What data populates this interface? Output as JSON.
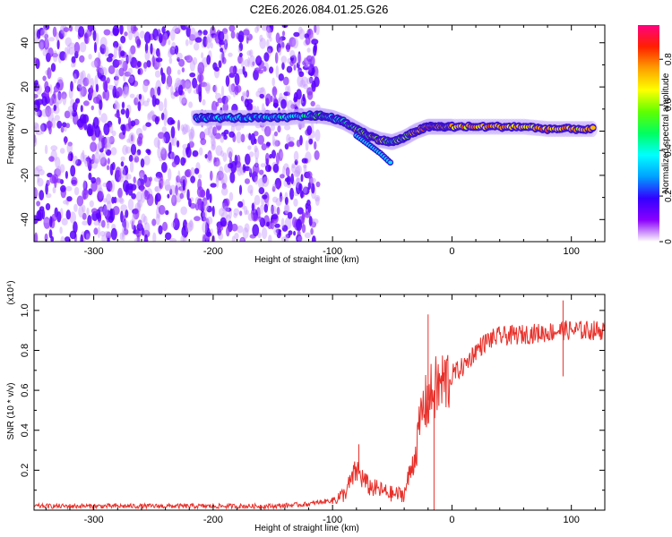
{
  "title": "C2E6.2026.084.01.25.G26",
  "chart_data": [
    {
      "type": "heatmap",
      "xlabel": "Height of straight line (km)",
      "ylabel": "Frequency (Hz)",
      "xlim": [
        -350,
        128
      ],
      "ylim": [
        -50,
        48
      ],
      "xticks": [
        -300,
        -200,
        -100,
        0,
        100
      ],
      "yticks": [
        -40,
        -20,
        0,
        20,
        40
      ],
      "colorbar": {
        "label": "Normalized spectral amplitude",
        "range": [
          0.0,
          0.95
        ],
        "ticks": [
          0.0,
          0.2,
          0.4,
          0.6,
          0.8
        ],
        "colors": [
          "#ffffff",
          "#8a00ff",
          "#3300ff",
          "#00a0ff",
          "#00ffff",
          "#00ff60",
          "#60ff00",
          "#ffff00",
          "#ffa000",
          "#ff2000",
          "#ff0080"
        ]
      },
      "signal_track": {
        "x": [
          -214,
          -200,
          -180,
          -160,
          -140,
          -120,
          -110,
          -100,
          -90,
          -80,
          -70,
          -60,
          -50,
          -40,
          -30,
          -20,
          -10,
          0,
          20,
          40,
          60,
          80,
          100,
          120
        ],
        "freq": [
          6,
          6,
          6,
          6,
          6,
          7,
          7,
          6,
          4,
          1,
          -2,
          -4,
          -5,
          -3,
          0,
          2,
          2,
          2,
          2,
          2,
          2,
          1,
          1,
          1
        ],
        "amplitude": [
          0.3,
          0.3,
          0.3,
          0.3,
          0.35,
          0.4,
          0.5,
          0.4,
          0.45,
          0.6,
          0.6,
          0.65,
          0.5,
          0.55,
          0.7,
          0.8,
          0.75,
          0.7,
          0.75,
          0.75,
          0.7,
          0.75,
          0.7,
          0.7
        ]
      },
      "noise_region": [
        -350,
        -112
      ],
      "branch": {
        "x": [
          -80,
          -70,
          -60,
          -50
        ],
        "freq": [
          -2,
          -6,
          -10,
          -15
        ]
      }
    },
    {
      "type": "line",
      "xlabel": "Height of straight line (km)",
      "ylabel": "SNR (10 * v/v)",
      "y_multiplier": "(x10⁴)",
      "xlim": [
        -350,
        128
      ],
      "ylim": [
        0,
        1.08
      ],
      "xticks": [
        -300,
        -200,
        -100,
        0,
        100
      ],
      "yticks": [
        0.2,
        0.4,
        0.6,
        0.8,
        1.0
      ],
      "color": "#e8302a",
      "series": {
        "x": [
          -350,
          -300,
          -250,
          -200,
          -150,
          -120,
          -100,
          -90,
          -80,
          -70,
          -60,
          -50,
          -40,
          -30,
          -25,
          -20,
          -15,
          -10,
          -5,
          0,
          10,
          20,
          30,
          40,
          60,
          80,
          90,
          100,
          110,
          120,
          128
        ],
        "y": [
          0.02,
          0.02,
          0.02,
          0.02,
          0.02,
          0.03,
          0.05,
          0.08,
          0.2,
          0.12,
          0.1,
          0.08,
          0.08,
          0.3,
          0.5,
          0.55,
          0.6,
          0.62,
          0.65,
          0.68,
          0.72,
          0.8,
          0.85,
          0.87,
          0.88,
          0.89,
          0.9,
          0.9,
          0.9,
          0.9,
          0.9
        ]
      },
      "spikes": [
        [
          -78,
          0.33
        ],
        [
          -20,
          0.98
        ],
        [
          -15,
          0.0
        ],
        [
          93,
          1.05
        ],
        [
          93,
          0.67
        ]
      ]
    }
  ]
}
